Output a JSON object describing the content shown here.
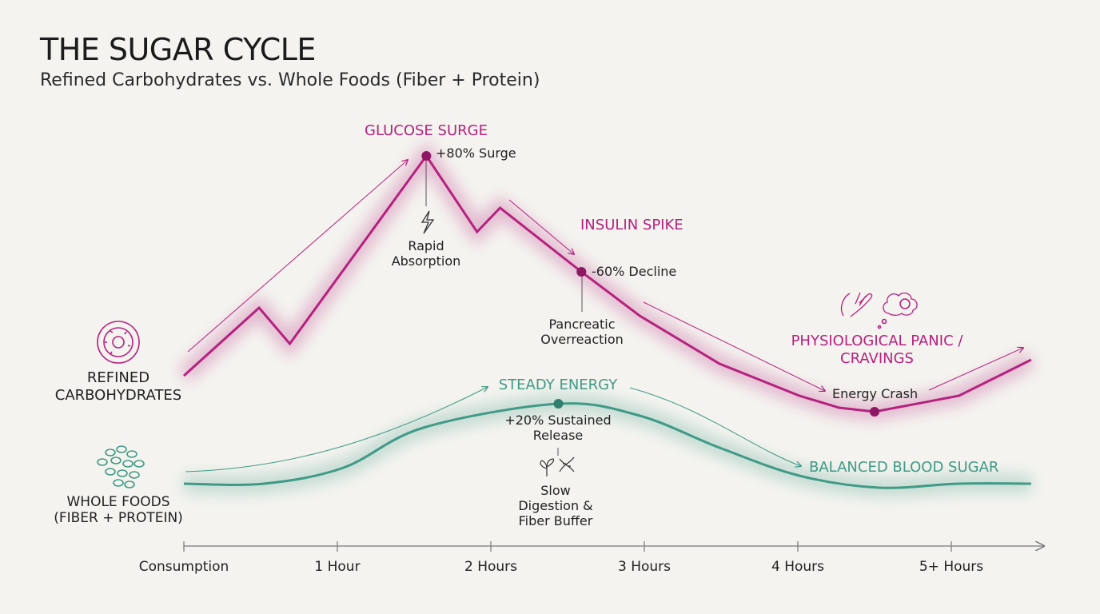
{
  "chart_data": {
    "type": "line",
    "title": "THE SUGAR CYCLE",
    "subtitle": "Refined Carbohydrates vs. Whole Foods (Fiber + Protein)",
    "xlim": [
      0,
      5.6
    ],
    "xticks": [
      {
        "value": 0,
        "label": "Consumption"
      },
      {
        "value": 1,
        "label": "1 Hour"
      },
      {
        "value": 2,
        "label": "2 Hours"
      },
      {
        "value": 3,
        "label": "3 Hours"
      },
      {
        "value": 4,
        "label": "4 Hours"
      },
      {
        "value": 5,
        "label": "5+ Hours"
      }
    ],
    "ylim": [
      0,
      100
    ],
    "grid": false,
    "series": [
      {
        "name": "REFINED CARBOHYDRATES",
        "color": "#b5217f",
        "smooth": false,
        "x": [
          0,
          0.49,
          0.69,
          1.58,
          1.91,
          2.06,
          2.59,
          2.97,
          3.23,
          3.49,
          3.75,
          4.01,
          4.27,
          4.5,
          5.05,
          5.52
        ],
        "values": [
          38,
          55,
          46,
          93,
          74,
          80,
          64,
          53,
          47,
          41,
          37,
          33,
          30,
          29,
          33,
          42
        ]
      },
      {
        "name": "WHOLE FOODS (FIBER + PROTEIN)",
        "color": "#3f9a86",
        "smooth": true,
        "x": [
          0,
          0.52,
          1.04,
          1.56,
          2.44,
          2.97,
          3.49,
          4.01,
          4.53,
          5.05,
          5.52
        ],
        "values": [
          11,
          11,
          15,
          25,
          31,
          28,
          20,
          13,
          10,
          11,
          11
        ]
      }
    ],
    "annotations": [
      "GLUCOSE SURGE",
      "+80% Surge",
      "Rapid Absorption",
      "INSULIN SPIKE",
      "-60% Decline",
      "Pancreatic Overreaction",
      "PHYSIOLOGICAL PANIC / CRAVINGS",
      "Energy Crash",
      "STEADY ENERGY",
      "+20% Sustained Release",
      "Slow Digestion & Fiber Buffer",
      "BALANCED BLOOD SUGAR"
    ]
  }
}
